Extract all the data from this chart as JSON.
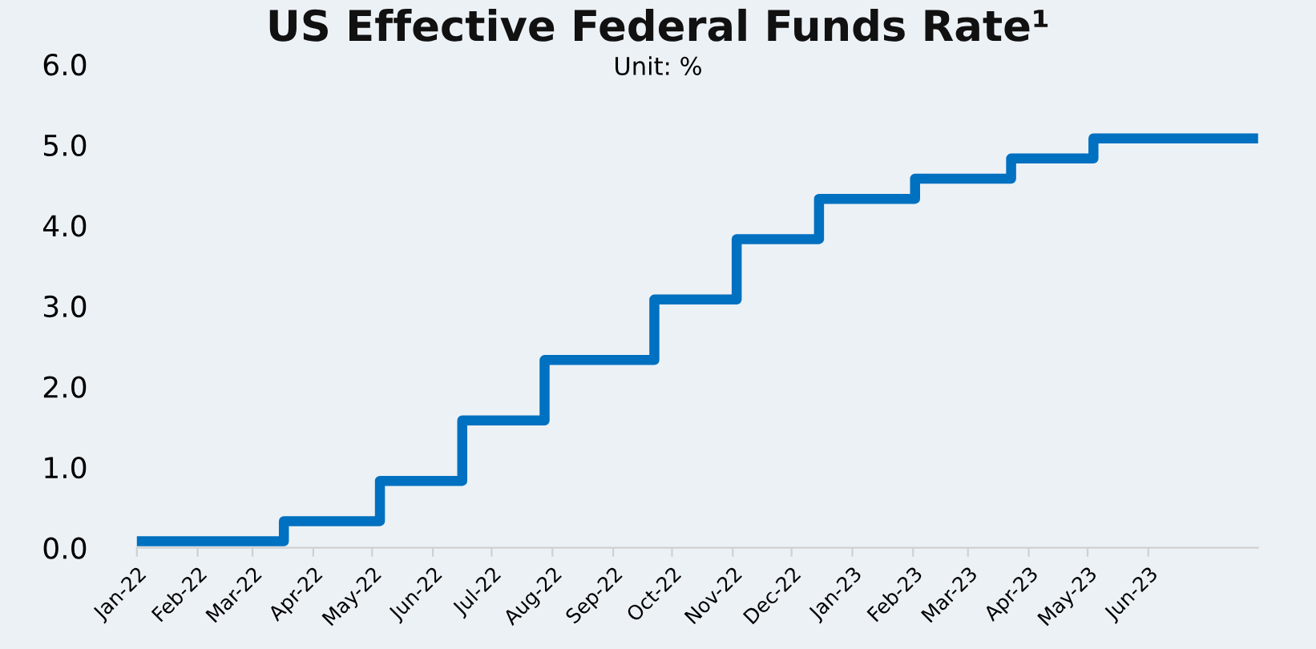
{
  "chart_data": {
    "type": "step",
    "title": "US Effective Federal Funds Rate¹",
    "subtitle": "Unit: %",
    "x": [
      "2022-01-01",
      "2022-03-17",
      "2022-05-05",
      "2022-06-16",
      "2022-07-28",
      "2022-09-22",
      "2022-11-03",
      "2022-12-15",
      "2023-02-02",
      "2023-03-23",
      "2023-05-04",
      "2023-07-27"
    ],
    "series": [
      {
        "color": "#0070c0",
        "values": [
          0.08,
          0.33,
          0.83,
          1.58,
          2.33,
          3.08,
          3.83,
          4.33,
          4.58,
          4.83,
          5.08,
          5.08
        ]
      }
    ],
    "xlim": [
      "2022-01-01",
      "2023-07-27"
    ],
    "xticks": [
      {
        "value": "2022-01-01",
        "label": "Jan-22"
      },
      {
        "value": "2022-02-01",
        "label": "Feb-22"
      },
      {
        "value": "2022-03-01",
        "label": "Mar-22"
      },
      {
        "value": "2022-04-01",
        "label": "Apr-22"
      },
      {
        "value": "2022-05-01",
        "label": "May-22"
      },
      {
        "value": "2022-06-01",
        "label": "Jun-22"
      },
      {
        "value": "2022-07-01",
        "label": "Jul-22"
      },
      {
        "value": "2022-08-01",
        "label": "Aug-22"
      },
      {
        "value": "2022-09-01",
        "label": "Sep-22"
      },
      {
        "value": "2022-10-01",
        "label": "Oct-22"
      },
      {
        "value": "2022-11-01",
        "label": "Nov-22"
      },
      {
        "value": "2022-12-01",
        "label": "Dec-22"
      },
      {
        "value": "2023-01-01",
        "label": "Jan-23"
      },
      {
        "value": "2023-02-01",
        "label": "Feb-23"
      },
      {
        "value": "2023-03-01",
        "label": "Mar-23"
      },
      {
        "value": "2023-04-01",
        "label": "Apr-23"
      },
      {
        "value": "2023-05-01",
        "label": "May-23"
      },
      {
        "value": "2023-06-01",
        "label": "Jun-23"
      }
    ],
    "ylim": [
      0,
      6
    ],
    "yticks": [
      {
        "value": 0,
        "label": "0.0"
      },
      {
        "value": 1,
        "label": "1.0"
      },
      {
        "value": 2,
        "label": "2.0"
      },
      {
        "value": 3,
        "label": "3.0"
      },
      {
        "value": 4,
        "label": "4.0"
      },
      {
        "value": 5,
        "label": "5.0"
      },
      {
        "value": 6,
        "label": "6.0"
      }
    ],
    "grid": false,
    "line_style": "solid",
    "marker": "none"
  }
}
